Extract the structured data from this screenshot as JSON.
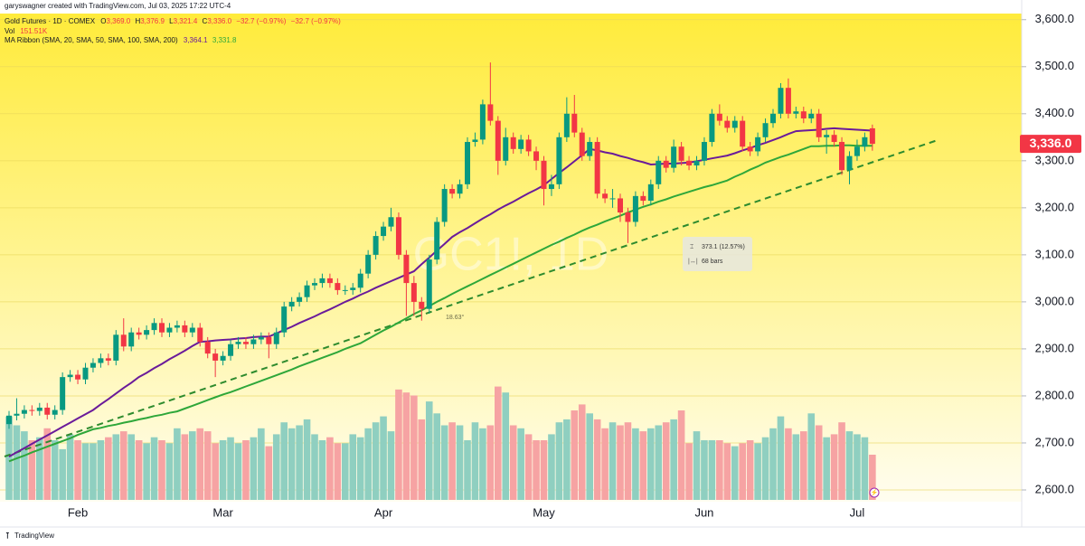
{
  "header": {
    "credit": "garyswagner created with TradingView.com, Jul 03, 2025 17:22 UTC-4",
    "symbol": "Gold Futures · 1D · COMEX",
    "ohlc": [
      {
        "label": "O",
        "value": "3,369.0"
      },
      {
        "label": "H",
        "value": "3,376.9"
      },
      {
        "label": "L",
        "value": "3,321.4"
      },
      {
        "label": "C",
        "value": "3,336.0"
      }
    ],
    "change": "−32.7 (−0.97%)",
    "change_pct": "−32.7 (−0.97%)",
    "volume": {
      "label": "Vol",
      "value": "151.51K"
    },
    "ma": {
      "label": "MA Ribbon (SMA, 20, SMA, 50, SMA, 100, SMA, 200)",
      "values": [
        "3,364.1",
        "3,331.8"
      ]
    }
  },
  "chart_data": {
    "type": "candlestick",
    "categories": [
      null,
      null,
      null,
      null,
      null,
      null,
      null,
      null,
      null,
      "Feb",
      null,
      null,
      null,
      null,
      null,
      null,
      null,
      null,
      null,
      null,
      null,
      null,
      null,
      null,
      null,
      null,
      null,
      null,
      "Mar",
      null,
      null,
      null,
      null,
      null,
      null,
      null,
      null,
      null,
      null,
      null,
      null,
      null,
      null,
      null,
      null,
      null,
      null,
      null,
      null,
      "Apr",
      null,
      null,
      null,
      null,
      null,
      null,
      null,
      null,
      null,
      null,
      null,
      null,
      null,
      null,
      null,
      null,
      null,
      null,
      null,
      null,
      "May",
      null,
      null,
      null,
      null,
      null,
      null,
      null,
      null,
      null,
      null,
      null,
      null,
      null,
      null,
      null,
      null,
      null,
      null,
      null,
      null,
      "Jun",
      null,
      null,
      null,
      null,
      null,
      null,
      null,
      null,
      null,
      null,
      null,
      null,
      null,
      null,
      null,
      null,
      null,
      null,
      null,
      "Jul",
      null,
      null
    ],
    "open": [
      2740,
      2758,
      2762,
      2770,
      2768,
      2775,
      2760,
      2770,
      2840,
      2845,
      2835,
      2860,
      2870,
      2880,
      2875,
      2930,
      2905,
      2935,
      2930,
      2940,
      2955,
      2935,
      2945,
      2950,
      2935,
      2945,
      2915,
      2890,
      2875,
      2885,
      2910,
      2915,
      2910,
      2920,
      2925,
      2910,
      2935,
      2990,
      3000,
      3010,
      3035,
      3040,
      3050,
      3040,
      3025,
      3025,
      3030,
      3060,
      3100,
      3140,
      3160,
      3180,
      3100,
      3040,
      3000,
      2985,
      3090,
      3170,
      3240,
      3230,
      3250,
      3340,
      3345,
      3420,
      3385,
      3300,
      3350,
      3325,
      3345,
      3320,
      3300,
      3240,
      3250,
      3350,
      3400,
      3360,
      3310,
      3340,
      3230,
      3220,
      3220,
      3190,
      3170,
      3225,
      3215,
      3250,
      3300,
      3285,
      3330,
      3300,
      3290,
      3300,
      3340,
      3400,
      3385,
      3370,
      3385,
      3330,
      3320,
      3350,
      3380,
      3400,
      3455,
      3400,
      3405,
      3390,
      3400,
      3350,
      3355,
      3340,
      3280,
      3310,
      3330,
      3369.0
    ],
    "high": [
      2768,
      2795,
      2780,
      2780,
      2785,
      2785,
      2780,
      2850,
      2855,
      2855,
      2870,
      2880,
      2890,
      2890,
      2940,
      2965,
      2945,
      2945,
      2950,
      2965,
      2965,
      2955,
      2960,
      2960,
      2955,
      2955,
      2925,
      2900,
      2895,
      2920,
      2925,
      2925,
      2930,
      2935,
      2935,
      2945,
      3000,
      3010,
      3020,
      3045,
      3050,
      3060,
      3060,
      3050,
      3035,
      3040,
      3070,
      3110,
      3150,
      3170,
      3200,
      3190,
      3110,
      3055,
      3010,
      3100,
      3180,
      3250,
      3250,
      3260,
      3350,
      3360,
      3430,
      3509,
      3395,
      3370,
      3360,
      3355,
      3355,
      3330,
      3310,
      3270,
      3360,
      3435,
      3440,
      3370,
      3350,
      3350,
      3240,
      3240,
      3230,
      3200,
      3235,
      3235,
      3260,
      3310,
      3310,
      3345,
      3340,
      3310,
      3310,
      3350,
      3410,
      3420,
      3395,
      3395,
      3395,
      3340,
      3360,
      3390,
      3410,
      3465,
      3475,
      3415,
      3415,
      3410,
      3410,
      3365,
      3365,
      3350,
      3320,
      3345,
      3360,
      3376.9
    ],
    "low": [
      2730,
      2748,
      2752,
      2758,
      2758,
      2750,
      2750,
      2760,
      2830,
      2825,
      2825,
      2850,
      2860,
      2865,
      2865,
      2895,
      2895,
      2920,
      2920,
      2930,
      2925,
      2925,
      2935,
      2925,
      2925,
      2905,
      2880,
      2840,
      2865,
      2875,
      2900,
      2900,
      2900,
      2910,
      2880,
      2900,
      2925,
      2980,
      2990,
      3000,
      3025,
      3030,
      3030,
      3015,
      3015,
      3015,
      3020,
      3050,
      3090,
      3130,
      3150,
      3090,
      2970,
      2970,
      2960,
      2975,
      3080,
      3160,
      3220,
      3220,
      3240,
      3330,
      3335,
      3375,
      3270,
      3290,
      3315,
      3315,
      3310,
      3280,
      3205,
      3225,
      3240,
      3340,
      3350,
      3300,
      3300,
      3220,
      3210,
      3200,
      3170,
      3125,
      3160,
      3205,
      3205,
      3240,
      3275,
      3275,
      3290,
      3280,
      3280,
      3290,
      3330,
      3375,
      3360,
      3360,
      3320,
      3310,
      3310,
      3340,
      3370,
      3390,
      3390,
      3390,
      3380,
      3380,
      3340,
      3315,
      3330,
      3270,
      3250,
      3300,
      3320,
      3321.4
    ],
    "close": [
      2758,
      2762,
      2770,
      2768,
      2775,
      2760,
      2770,
      2840,
      2845,
      2835,
      2860,
      2870,
      2880,
      2875,
      2930,
      2905,
      2935,
      2930,
      2940,
      2955,
      2935,
      2945,
      2950,
      2935,
      2945,
      2915,
      2890,
      2875,
      2885,
      2910,
      2915,
      2910,
      2920,
      2925,
      2910,
      2935,
      2990,
      3000,
      3010,
      3035,
      3040,
      3050,
      3040,
      3025,
      3025,
      3030,
      3060,
      3100,
      3140,
      3160,
      3180,
      3100,
      3040,
      3000,
      2985,
      3090,
      3170,
      3240,
      3230,
      3250,
      3340,
      3345,
      3420,
      3385,
      3300,
      3350,
      3325,
      3345,
      3320,
      3300,
      3240,
      3250,
      3350,
      3400,
      3360,
      3310,
      3340,
      3230,
      3220,
      3220,
      3190,
      3170,
      3225,
      3215,
      3250,
      3300,
      3285,
      3330,
      3300,
      3290,
      3300,
      3340,
      3400,
      3385,
      3370,
      3385,
      3330,
      3320,
      3350,
      3380,
      3400,
      3455,
      3400,
      3405,
      3390,
      3400,
      3350,
      3355,
      3340,
      3280,
      3310,
      3330,
      3350,
      3336.0
    ],
    "up_color": "#089981",
    "down_color": "#f23645",
    "price_label": "3,336.0",
    "volume": {
      "values": [
        280,
        250,
        230,
        200,
        210,
        240,
        200,
        170,
        220,
        200,
        190,
        190,
        200,
        210,
        220,
        230,
        220,
        200,
        190,
        210,
        200,
        190,
        240,
        220,
        230,
        240,
        230,
        190,
        200,
        210,
        190,
        200,
        210,
        240,
        180,
        220,
        260,
        240,
        250,
        270,
        220,
        200,
        210,
        190,
        190,
        220,
        210,
        240,
        260,
        280,
        230,
        370,
        360,
        350,
        270,
        330,
        290,
        250,
        260,
        250,
        200,
        260,
        240,
        250,
        380,
        360,
        250,
        240,
        220,
        200,
        200,
        220,
        260,
        270,
        300,
        320,
        290,
        270,
        240,
        260,
        250,
        260,
        240,
        230,
        240,
        250,
        260,
        270,
        300,
        190,
        230,
        200,
        200,
        200,
        190,
        180,
        190,
        200,
        190,
        210,
        240,
        280,
        240,
        220,
        230,
        290,
        250,
        210,
        220,
        260,
        230,
        220,
        210,
        151.51
      ],
      "up_color": "#8fcfc0",
      "down_color": "#f6a3a3"
    },
    "lines": [
      {
        "color": "#6a1b9a",
        "values": [
          2671,
          2680,
          2689,
          2698,
          2707,
          2716,
          2725,
          2734,
          2743,
          2752,
          2761,
          2770,
          2782,
          2793,
          2805,
          2817,
          2828,
          2840,
          2849,
          2859,
          2868,
          2878,
          2887,
          2896,
          2906,
          2915,
          2916,
          2918,
          2919,
          2920,
          2922,
          2923,
          2925,
          2926,
          2926,
          2933,
          2940,
          2947,
          2955,
          2962,
          2969,
          2977,
          2984,
          2992,
          3000,
          3007,
          3015,
          3022,
          3030,
          3037,
          3044,
          3051,
          3058,
          3065,
          3080,
          3094,
          3109,
          3123,
          3138,
          3148,
          3157,
          3167,
          3177,
          3186,
          3196,
          3205,
          3213,
          3222,
          3231,
          3239,
          3248,
          3261,
          3274,
          3286,
          3299,
          3312,
          3325,
          3322,
          3318,
          3315,
          3310,
          3306,
          3301,
          3297,
          3292,
          3293,
          3294,
          3294,
          3295,
          3296,
          3299,
          3302,
          3305,
          3308,
          3311,
          3316,
          3322,
          3327,
          3333,
          3338,
          3344,
          3350,
          3357,
          3363,
          3364,
          3365,
          3366,
          3368,
          3369,
          3368,
          3367,
          3366,
          3365,
          3364.1
        ]
      },
      {
        "color": "#2ea73a",
        "values": [
          2661,
          2667,
          2673,
          2680,
          2686,
          2692,
          2698,
          2704,
          2710,
          2717,
          2723,
          2729,
          2732,
          2736,
          2739,
          2743,
          2746,
          2750,
          2753,
          2757,
          2760,
          2764,
          2767,
          2773,
          2779,
          2785,
          2791,
          2797,
          2803,
          2808,
          2814,
          2820,
          2826,
          2832,
          2838,
          2844,
          2850,
          2856,
          2863,
          2869,
          2875,
          2881,
          2887,
          2893,
          2900,
          2906,
          2912,
          2921,
          2930,
          2939,
          2947,
          2956,
          2965,
          2974,
          2982,
          2991,
          3000,
          3008,
          3017,
          3025,
          3033,
          3041,
          3049,
          3057,
          3065,
          3073,
          3081,
          3089,
          3097,
          3105,
          3113,
          3121,
          3128,
          3136,
          3143,
          3151,
          3158,
          3164,
          3171,
          3177,
          3183,
          3190,
          3196,
          3202,
          3207,
          3213,
          3218,
          3224,
          3229,
          3234,
          3239,
          3244,
          3248,
          3253,
          3258,
          3266,
          3273,
          3281,
          3288,
          3296,
          3302,
          3308,
          3313,
          3319,
          3325,
          3331,
          3331,
          3332,
          3332,
          3333,
          3333,
          3332,
          3332,
          3331.8
        ]
      }
    ],
    "ylim": [
      2575,
      3613
    ],
    "yticks": [
      {
        "value": 2600,
        "label": "2,600.0"
      },
      {
        "value": 2700,
        "label": "2,700.0"
      },
      {
        "value": 2800,
        "label": "2,800.0"
      },
      {
        "value": 2900,
        "label": "2,900.0"
      },
      {
        "value": 3000,
        "label": "3,000.0"
      },
      {
        "value": 3100,
        "label": "3,100.0"
      },
      {
        "value": 3200,
        "label": "3,200.0"
      },
      {
        "value": 3300,
        "label": "3,300.0"
      },
      {
        "value": 3400,
        "label": "3,400.0"
      },
      {
        "value": 3500,
        "label": "3,500.0"
      },
      {
        "value": 3600,
        "label": "3,600.0"
      }
    ],
    "grid": true,
    "annotations": {
      "watermark": "GC1!, 1D",
      "angle": "18.63°",
      "measure": "373.1 (12.57%)",
      "bars": "68 bars"
    }
  },
  "footer": {
    "brand": "TradingView"
  }
}
